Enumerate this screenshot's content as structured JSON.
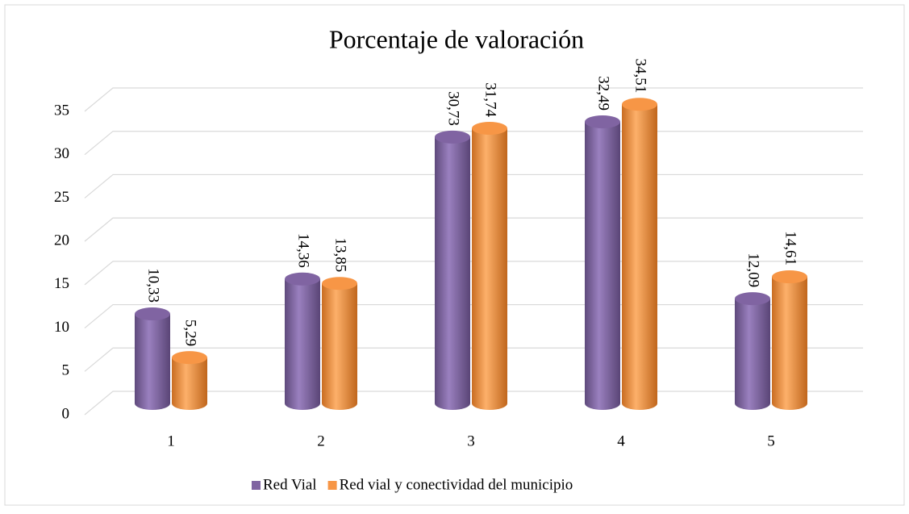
{
  "chart_data": {
    "type": "bar",
    "title": "Porcentaje de valoración",
    "categories": [
      "1",
      "2",
      "3",
      "4",
      "5"
    ],
    "series": [
      {
        "name": "Red Vial",
        "color": "#8064a2",
        "values": [
          10.33,
          14.36,
          30.73,
          32.49,
          12.09
        ],
        "value_labels": [
          "10,33",
          "14,36",
          "30,73",
          "32,49",
          "12,09"
        ]
      },
      {
        "name": "Red vial y conectividad del municipio",
        "color": "#f79646",
        "values": [
          5.29,
          13.85,
          31.74,
          34.51,
          14.61
        ],
        "value_labels": [
          "5,29",
          "13,85",
          "31,74",
          "34,51",
          "14,61"
        ]
      }
    ],
    "ylim": [
      0,
      35
    ],
    "yticks": [
      0,
      5,
      10,
      15,
      20,
      25,
      30,
      35
    ],
    "grid": true,
    "legend": "bottom"
  }
}
